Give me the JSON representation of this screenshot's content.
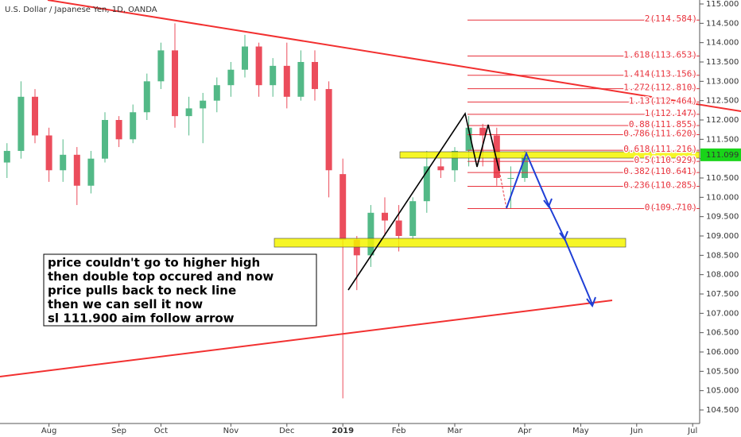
{
  "chart_data": {
    "type": "candlestick",
    "title": "U.S. Dollar / Japanese Yen, 1D, OANDA",
    "categories": [
      null,
      null,
      null,
      "Aug",
      null,
      null,
      null,
      null,
      "Sep",
      null,
      null,
      "Oct",
      null,
      null,
      null,
      null,
      "Nov",
      null,
      null,
      null,
      "Dec",
      null,
      null,
      null,
      "2019",
      null,
      null,
      null,
      "Feb",
      null,
      null,
      null,
      "Mar",
      null,
      null,
      null,
      null,
      "Apr",
      null,
      null,
      null,
      "May",
      null,
      null,
      null,
      "Jun",
      null,
      null,
      null,
      "Jul"
    ],
    "open": [
      110.9,
      111.2,
      112.6,
      111.6,
      110.7,
      111.1,
      110.3,
      111.0,
      112.0,
      111.5,
      112.2,
      113.0,
      113.8,
      112.1,
      112.3,
      112.5,
      112.9,
      113.3,
      113.9,
      112.9,
      113.4,
      112.6,
      113.5,
      112.8,
      110.6,
      108.9,
      108.5,
      109.6,
      109.4,
      109.0,
      109.9,
      110.8,
      110.7,
      111.2,
      111.8,
      111.6,
      110.5,
      110.5,
      null,
      null,
      null,
      null,
      null,
      null,
      null,
      null,
      null,
      null,
      null,
      null
    ],
    "high": [
      111.4,
      113.0,
      112.8,
      111.8,
      111.5,
      111.3,
      111.2,
      112.2,
      112.1,
      112.4,
      113.2,
      114.0,
      114.5,
      112.6,
      112.7,
      113.1,
      113.5,
      114.2,
      114.0,
      113.6,
      114.0,
      113.8,
      113.8,
      113.0,
      111.0,
      109.0,
      109.8,
      110.0,
      109.8,
      110.0,
      111.2,
      111.0,
      111.3,
      112.1,
      111.9,
      111.8,
      110.8,
      111.2,
      null,
      null,
      null,
      null,
      null,
      null,
      null,
      null,
      null,
      null,
      null,
      null
    ],
    "low": [
      110.5,
      111.0,
      111.4,
      110.4,
      110.4,
      109.8,
      110.1,
      110.9,
      111.3,
      111.4,
      112.0,
      112.8,
      111.8,
      111.6,
      111.4,
      112.2,
      112.6,
      113.1,
      112.6,
      112.6,
      112.3,
      112.5,
      112.5,
      110.0,
      104.8,
      107.6,
      108.2,
      109.0,
      108.6,
      108.9,
      109.6,
      110.5,
      110.4,
      110.8,
      110.8,
      110.3,
      109.7,
      110.4,
      null,
      null,
      null,
      null,
      null,
      null,
      null,
      null,
      null,
      null,
      null,
      null
    ],
    "close": [
      111.2,
      112.6,
      111.6,
      110.7,
      111.1,
      110.3,
      111.0,
      112.0,
      111.5,
      112.2,
      113.0,
      113.8,
      112.1,
      112.3,
      112.5,
      112.9,
      113.3,
      113.9,
      112.9,
      113.4,
      112.6,
      113.5,
      112.8,
      110.7,
      108.9,
      108.5,
      109.6,
      109.4,
      109.0,
      109.9,
      110.8,
      110.7,
      111.2,
      111.8,
      111.6,
      110.5,
      110.5,
      111.1,
      null,
      null,
      null,
      null,
      null,
      null,
      null,
      null,
      null,
      null,
      null,
      null
    ],
    "up_color": "#53b987",
    "down_color": "#eb4d5c",
    "ylim": [
      104.4,
      115.1
    ],
    "yticks": [
      {
        "value": 104.5,
        "label": "104.500"
      },
      {
        "value": 105,
        "label": "105.000"
      },
      {
        "value": 105.5,
        "label": "105.500"
      },
      {
        "value": 106,
        "label": "106.000"
      },
      {
        "value": 106.5,
        "label": "106.500"
      },
      {
        "value": 107,
        "label": "107.000"
      },
      {
        "value": 107.5,
        "label": "107.500"
      },
      {
        "value": 108,
        "label": "108.000"
      },
      {
        "value": 108.5,
        "label": "108.500"
      },
      {
        "value": 109,
        "label": "109.000"
      },
      {
        "value": 109.5,
        "label": "109.500"
      },
      {
        "value": 110,
        "label": "110.000"
      },
      {
        "value": 110.5,
        "label": "110.500"
      },
      {
        "value": 111,
        "label": "111.000"
      },
      {
        "value": 111.5,
        "label": "111.500"
      },
      {
        "value": 112,
        "label": "112.000"
      },
      {
        "value": 112.5,
        "label": "112.500"
      },
      {
        "value": 113,
        "label": "113.000"
      },
      {
        "value": 113.5,
        "label": "113.500"
      },
      {
        "value": 114,
        "label": "114.000"
      },
      {
        "value": 114.5,
        "label": "114.500"
      },
      {
        "value": 115,
        "label": "115.000"
      }
    ],
    "last_price": 111.099,
    "fib_levels": [
      {
        "value": 114.584,
        "label": "2(114.584)"
      },
      {
        "value": 113.653,
        "label": "1.618(113.653)"
      },
      {
        "value": 113.156,
        "label": "1.414(113.156)"
      },
      {
        "value": 112.81,
        "label": "1.272(112.810)"
      },
      {
        "value": 112.464,
        "label": "1.13(112.464)"
      },
      {
        "value": 112.147,
        "label": "1(112.147)"
      },
      {
        "value": 111.855,
        "label": "0.88(111.855)"
      },
      {
        "value": 111.62,
        "label": "0.786(111.620)"
      },
      {
        "value": 111.216,
        "label": "0.618(111.216)"
      },
      {
        "value": 110.929,
        "label": "0.5(110.929)"
      },
      {
        "value": 110.641,
        "label": "0.382(110.641)"
      },
      {
        "value": 110.285,
        "label": "0.236(110.285)"
      },
      {
        "value": 109.71,
        "label": "0(109.710)"
      }
    ],
    "annotation": [
      "price couldn't go to higher high",
      "then double top occured and now",
      "price pulls back to neck line",
      "then we can sell it now",
      "sl 111.900 aim follow arrow"
    ]
  }
}
